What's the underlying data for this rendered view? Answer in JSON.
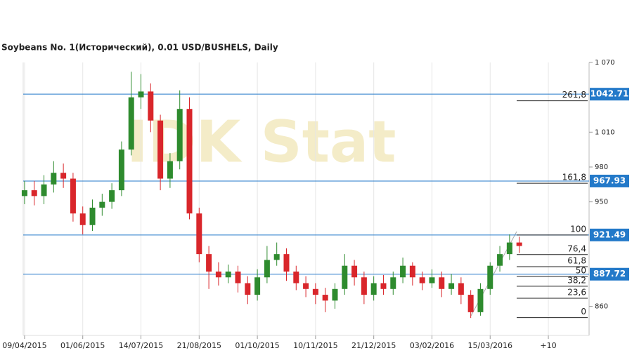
{
  "chart_data": {
    "type": "candlestick",
    "title": "Soybeans  No. 1(Исторический), 0.01 USD/BUSHELS, Daily",
    "watermark": "IDK Stat",
    "x": [
      0,
      5,
      10,
      15,
      20,
      25,
      30,
      35,
      40,
      45,
      50,
      55,
      60,
      65,
      70,
      75,
      80,
      85,
      90,
      95,
      100,
      105,
      110,
      115,
      120,
      125,
      130,
      135,
      140,
      145,
      150,
      155,
      160,
      165,
      170,
      175,
      180,
      185,
      190,
      195,
      200,
      205,
      210,
      215,
      220,
      225,
      230,
      235,
      240,
      245,
      250,
      255
    ],
    "open": [
      955,
      960,
      955,
      965,
      975,
      970,
      940,
      930,
      945,
      950,
      960,
      995,
      1040,
      1045,
      1020,
      970,
      985,
      1030,
      940,
      905,
      890,
      885,
      890,
      880,
      870,
      885,
      900,
      905,
      890,
      880,
      875,
      870,
      865,
      875,
      895,
      885,
      870,
      880,
      875,
      885,
      895,
      885,
      880,
      885,
      875,
      880,
      870,
      855,
      875,
      895,
      905,
      915
    ],
    "high": [
      968,
      968,
      973,
      985,
      983,
      975,
      946,
      952,
      957,
      966,
      1002,
      1062,
      1060,
      1052,
      1025,
      992,
      1046,
      1040,
      945,
      912,
      898,
      896,
      895,
      886,
      892,
      912,
      915,
      910,
      895,
      886,
      880,
      876,
      880,
      905,
      900,
      890,
      886,
      887,
      890,
      902,
      898,
      890,
      892,
      890,
      888,
      885,
      874,
      880,
      898,
      912,
      922,
      920
    ],
    "low": [
      948,
      947,
      948,
      958,
      962,
      933,
      922,
      925,
      938,
      944,
      955,
      990,
      1030,
      1010,
      960,
      962,
      978,
      935,
      898,
      875,
      878,
      880,
      872,
      862,
      865,
      880,
      895,
      882,
      874,
      868,
      862,
      855,
      858,
      870,
      878,
      862,
      865,
      870,
      870,
      880,
      878,
      874,
      876,
      868,
      870,
      862,
      850,
      852,
      870,
      890,
      900,
      906
    ],
    "close": [
      960,
      955,
      965,
      975,
      970,
      940,
      930,
      945,
      950,
      960,
      995,
      1040,
      1045,
      1020,
      970,
      985,
      1030,
      940,
      905,
      890,
      885,
      890,
      880,
      870,
      885,
      900,
      905,
      890,
      880,
      875,
      870,
      865,
      875,
      895,
      885,
      870,
      880,
      875,
      885,
      895,
      885,
      880,
      885,
      875,
      880,
      870,
      855,
      875,
      895,
      905,
      915,
      912
    ],
    "up_color": "#2e8b2e",
    "down_color": "#d9262b",
    "xlim": [
      -0.7,
      291
    ],
    "xticks": [
      {
        "value": 0,
        "label": "09/04/2015"
      },
      {
        "value": 30,
        "label": "01/06/2015"
      },
      {
        "value": 60,
        "label": "14/07/2015"
      },
      {
        "value": 90,
        "label": "21/08/2015"
      },
      {
        "value": 120,
        "label": "01/10/2015"
      },
      {
        "value": 150,
        "label": "10/11/2015"
      },
      {
        "value": 180,
        "label": "21/12/2015"
      },
      {
        "value": 210,
        "label": "03/02/2016"
      },
      {
        "value": 240,
        "label": "15/03/2016"
      },
      {
        "value": 270,
        "label": "+10"
      }
    ],
    "ylim": [
      835,
      1070
    ],
    "yticks": [
      {
        "value": 1070,
        "label": "1 070"
      },
      {
        "value": 1010,
        "label": "1 010"
      },
      980,
      950,
      860
    ],
    "price_lines": [
      1042.71,
      967.93,
      921.49,
      887.72
    ],
    "price_color": "#2379c9",
    "fib_levels": [
      {
        "ratio": {
          "value": 261.8,
          "label": "261,8"
        },
        "price": 1037
      },
      {
        "ratio": {
          "value": 161.8,
          "label": "161,8"
        },
        "price": 966
      },
      {
        "ratio": 100,
        "price": 921.5
      },
      {
        "ratio": {
          "value": 76.4,
          "label": "76,4"
        },
        "price": 904.6
      },
      {
        "ratio": {
          "value": 61.8,
          "label": "61,8"
        },
        "price": 894.2
      },
      {
        "ratio": 50,
        "price": 885.8
      },
      {
        "ratio": {
          "value": 38.2,
          "label": "38,2"
        },
        "price": 877.4
      },
      {
        "ratio": {
          "value": 23.6,
          "label": "23,6"
        },
        "price": 867
      },
      {
        "ratio": 0,
        "price": 850.3
      }
    ],
    "grid": true
  }
}
